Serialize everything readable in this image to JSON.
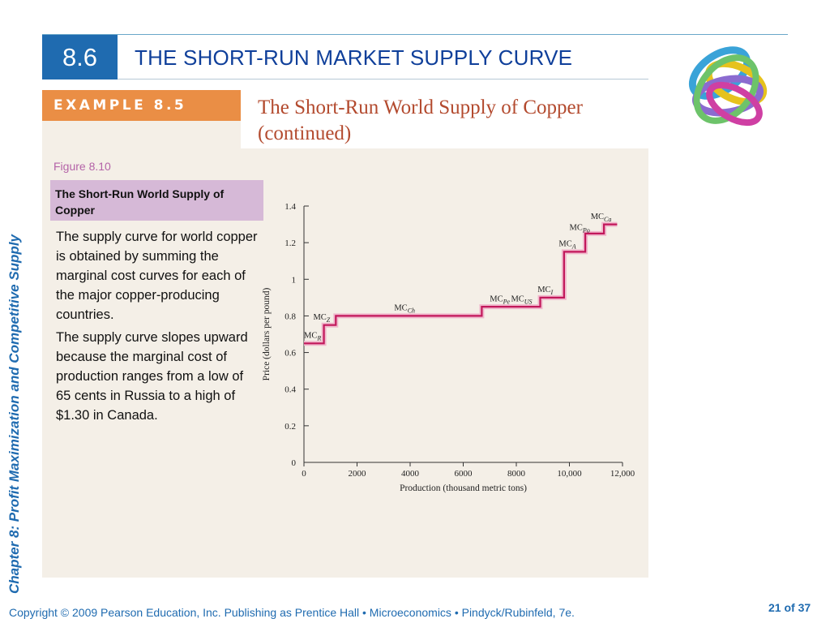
{
  "header": {
    "section": "8.6",
    "title": "THE SHORT-RUN MARKET SUPPLY CURVE"
  },
  "side_title": "Chapter 8:  Profit Maximization and Competitive Supply",
  "example": {
    "label": "EXAMPLE 8.5",
    "title_line1": "The Short-Run World Supply of Copper",
    "title_line2": "(continued)"
  },
  "figure": {
    "label": "Figure 8.10",
    "caption": "The Short-Run World Supply of Copper"
  },
  "body": {
    "p1": "The supply curve for world copper is obtained by summing the marginal cost curves for each of the major copper-producing countries.",
    "p2": "The supply curve slopes upward because the marginal cost of production ranges from a low of 65 cents in Russia to a high of $1.30 in Canada."
  },
  "footer": {
    "text": "Copyright © 2009 Pearson Education, Inc. Publishing as Prentice Hall  •  Microeconomics  •  Pindyck/Rubinfeld, 7e.",
    "page": "21 of 37"
  },
  "colors": {
    "accent": "#1f6bb0",
    "banner": "#ea8e45",
    "curve": "#c2185b",
    "caption_bg": "#d6b9d7",
    "panel_bg": "#f4efe7"
  },
  "chart_data": {
    "type": "line",
    "xlabel": "Production (thousand metric tons)",
    "ylabel": "Price (dollars per pound)",
    "xlim": [
      0,
      12000
    ],
    "ylim": [
      0,
      1.4
    ],
    "x_ticks": [
      0,
      2000,
      4000,
      6000,
      8000,
      10000,
      12000
    ],
    "x_tick_labels": [
      "0",
      "2000",
      "4000",
      "6000",
      "8000",
      "10,000",
      "12,000"
    ],
    "y_ticks": [
      0,
      0.2,
      0.4,
      0.6,
      0.8,
      1,
      1.2,
      1.4
    ],
    "y_tick_labels": [
      "0",
      "0.2",
      "0.4",
      "0.6",
      "0.8",
      "1",
      "1.2",
      "1.4"
    ],
    "grid": false,
    "series": [
      {
        "type": "step",
        "points": [
          [
            0,
            0.65
          ],
          [
            750,
            0.65
          ],
          [
            750,
            0.75
          ],
          [
            1200,
            0.75
          ],
          [
            1200,
            0.8
          ],
          [
            6700,
            0.8
          ],
          [
            6700,
            0.85
          ],
          [
            8900,
            0.85
          ],
          [
            8900,
            0.9
          ],
          [
            9800,
            0.9
          ],
          [
            9800,
            1.15
          ],
          [
            10600,
            1.15
          ],
          [
            10600,
            1.25
          ],
          [
            11300,
            1.25
          ],
          [
            11300,
            1.3
          ],
          [
            11800,
            1.3
          ]
        ]
      }
    ],
    "annotations": [
      {
        "base": "MC",
        "sub": "R",
        "x": 0,
        "y": 0.68
      },
      {
        "base": "MC",
        "sub": "Z",
        "x": 350,
        "y": 0.78
      },
      {
        "base": "MC",
        "sub": "Ch",
        "x": 3400,
        "y": 0.83
      },
      {
        "base": "MC",
        "sub": "Pe",
        "x": 7000,
        "y": 0.88
      },
      {
        "base": "MC",
        "sub": "US",
        "x": 7800,
        "y": 0.88
      },
      {
        "base": "MC",
        "sub": "I",
        "x": 8800,
        "y": 0.93
      },
      {
        "base": "MC",
        "sub": "A",
        "x": 9600,
        "y": 1.18
      },
      {
        "base": "MC",
        "sub": "Po",
        "x": 10000,
        "y": 1.27
      },
      {
        "base": "MC",
        "sub": "Ca",
        "x": 10800,
        "y": 1.33
      }
    ]
  }
}
